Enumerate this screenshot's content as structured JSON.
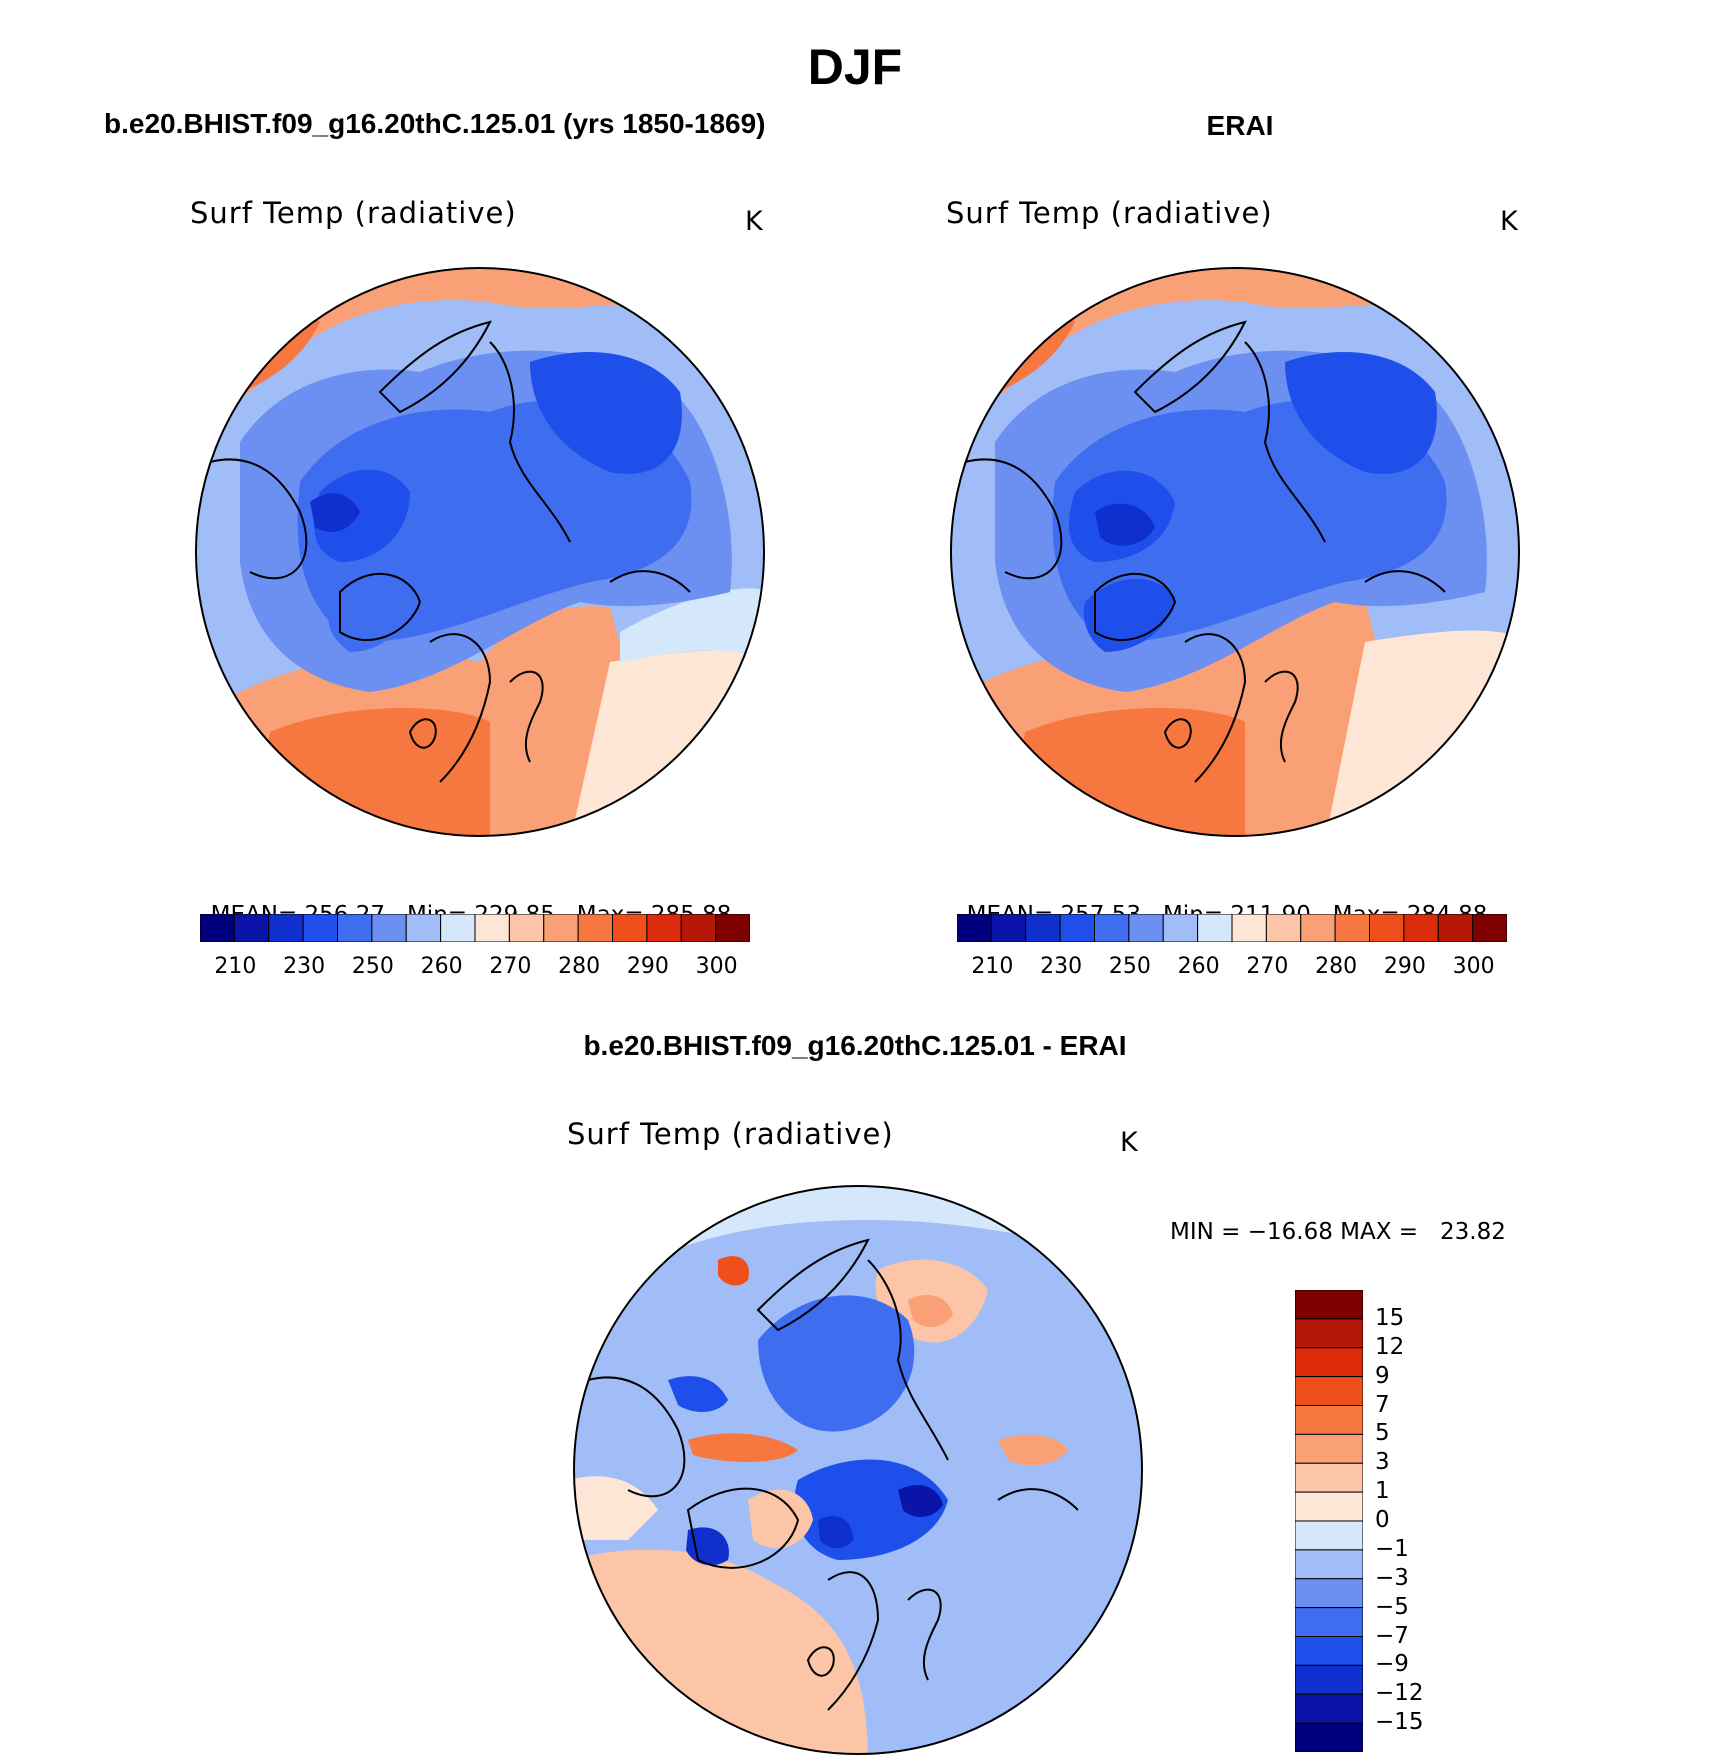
{
  "title": "DJF",
  "panels": {
    "model": {
      "heading": "b.e20.BHIST.f09_g16.20thC.125.01 (yrs 1850-1869)",
      "variable": "Surf Temp (radiative)",
      "units": "K",
      "stats": {
        "mean_label": "MEAN=",
        "mean": "256.27",
        "min_label": "Min=",
        "min": "229.85",
        "max_label": "Max=",
        "max": "285.88"
      }
    },
    "obs": {
      "heading": "ERAI",
      "variable": "Surf Temp (radiative)",
      "units": "K",
      "stats": {
        "mean_label": "MEAN=",
        "mean": "257.53",
        "min_label": "Min=",
        "min": "211.90",
        "max_label": "Max=",
        "max": "284.88"
      }
    },
    "diff": {
      "heading": "b.e20.BHIST.f09_g16.20thC.125.01 - ERAI",
      "variable": "Surf Temp (radiative)",
      "units": "K",
      "minmax": "MIN = −16.68 MAX =   23.82"
    }
  },
  "temp_colorbar": {
    "colors": [
      "#00007f",
      "#0a14a8",
      "#0f2fcf",
      "#1f4fea",
      "#3e6df0",
      "#6b90f2",
      "#a0bdf7",
      "#d5e7fb",
      "#fde6d6",
      "#fcc5a8",
      "#f9a077",
      "#f6773f",
      "#ef4f1a",
      "#dc2b0b",
      "#b51806",
      "#7f0000"
    ],
    "labels": [
      "210",
      "230",
      "250",
      "260",
      "270",
      "280",
      "290",
      "300"
    ]
  },
  "diff_colorbar": {
    "colors": [
      "#7f0000",
      "#b51806",
      "#dc2b0b",
      "#ef4f1a",
      "#f6773f",
      "#f9a077",
      "#fcc5a8",
      "#fde6d6",
      "#d5e7fb",
      "#a0bdf7",
      "#6b90f2",
      "#3e6df0",
      "#1f4fea",
      "#0f2fcf",
      "#0a14a8",
      "#00007f"
    ],
    "labels": [
      "15",
      "12",
      "9",
      "7",
      "5",
      "3",
      "1",
      "0",
      "−1",
      "−3",
      "−5",
      "−7",
      "−9",
      "−12",
      "−15"
    ]
  }
}
